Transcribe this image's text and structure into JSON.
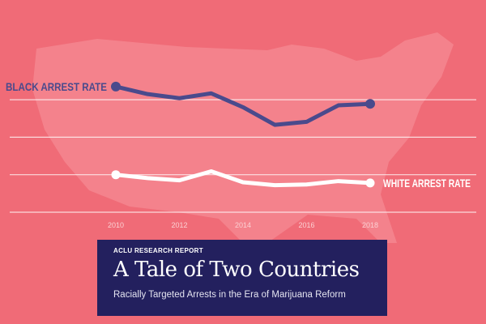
{
  "chart_data": {
    "type": "line",
    "x": [
      2010,
      2011,
      2012,
      2013,
      2014,
      2015,
      2016,
      2017,
      2018
    ],
    "x_tick_labels": [
      "2010",
      "2012",
      "2014",
      "2016",
      "2018"
    ],
    "ylim": [
      0,
      3.5
    ],
    "y_gridlines": [
      0,
      1,
      2,
      3
    ],
    "grid": true,
    "legend": "direct labels at line ends",
    "series": [
      {
        "name": "BLACK ARREST RATE",
        "color": "#4a4a8c",
        "values": [
          3.35,
          3.15,
          3.04,
          3.17,
          2.8,
          2.33,
          2.41,
          2.85,
          2.89
        ]
      },
      {
        "name": "WHITE ARREST RATE",
        "color": "#ffffff",
        "values": [
          1.0,
          0.91,
          0.85,
          1.09,
          0.8,
          0.72,
          0.74,
          0.83,
          0.78
        ]
      }
    ]
  },
  "colors": {
    "background": "#f06b77",
    "panel": "#23205e"
  },
  "report": {
    "kicker": "ACLU RESEARCH REPORT",
    "title": "A Tale of Two Countries",
    "subtitle": "Racially Targeted Arrests in the Era of Marijuana Reform"
  }
}
